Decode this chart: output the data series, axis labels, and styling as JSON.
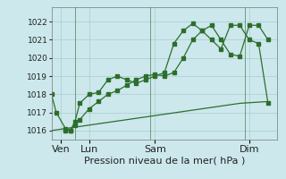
{
  "bg_color": "#cce8ec",
  "grid_color": "#aacccc",
  "line_color": "#2d6e2d",
  "title": "Pression niveau de la mer( hPa )",
  "ylim": [
    1015.5,
    1022.8
  ],
  "yticks": [
    1016,
    1017,
    1018,
    1019,
    1020,
    1021,
    1022
  ],
  "tick_fontsize": 6.5,
  "xlabel_fontsize": 8,
  "series1_x": [
    0,
    0.5,
    1.5,
    2,
    2.5,
    3,
    4,
    5,
    6,
    7,
    8,
    9,
    10,
    11,
    12,
    13,
    14,
    15,
    16,
    17,
    18,
    19,
    20,
    21,
    22,
    23
  ],
  "series1_y": [
    1018.0,
    1017.0,
    1016.1,
    1016.0,
    1016.5,
    1017.5,
    1018.0,
    1018.1,
    1018.8,
    1019.0,
    1018.8,
    1018.6,
    1018.8,
    1019.0,
    1019.2,
    1020.8,
    1021.5,
    1021.9,
    1021.5,
    1021.0,
    1020.5,
    1021.8,
    1021.8,
    1021.0,
    1020.8,
    1017.5
  ],
  "series2_x": [
    1.5,
    2,
    2.5,
    3,
    4,
    5,
    6,
    7,
    8,
    9,
    10,
    11,
    12,
    13,
    14,
    15,
    16,
    17,
    18,
    19,
    20,
    21,
    22,
    23
  ],
  "series2_y": [
    1016.0,
    1016.0,
    1016.3,
    1016.6,
    1017.2,
    1017.6,
    1018.0,
    1018.2,
    1018.5,
    1018.8,
    1019.0,
    1019.1,
    1019.0,
    1019.2,
    1020.0,
    1021.0,
    1021.5,
    1021.8,
    1021.0,
    1020.2,
    1020.1,
    1021.8,
    1021.8,
    1021.0
  ],
  "series3_x": [
    0,
    4,
    8,
    12,
    16,
    20,
    23
  ],
  "series3_y": [
    1016.0,
    1016.3,
    1016.6,
    1016.9,
    1017.2,
    1017.5,
    1017.6
  ],
  "vlines_x": [
    2.5,
    10.5,
    20.5
  ],
  "xtick_positions": [
    1,
    4,
    11,
    21
  ],
  "xtick_labels": [
    "Ven",
    "Lun",
    "Sam",
    "Dim"
  ],
  "xlim": [
    0,
    24
  ]
}
